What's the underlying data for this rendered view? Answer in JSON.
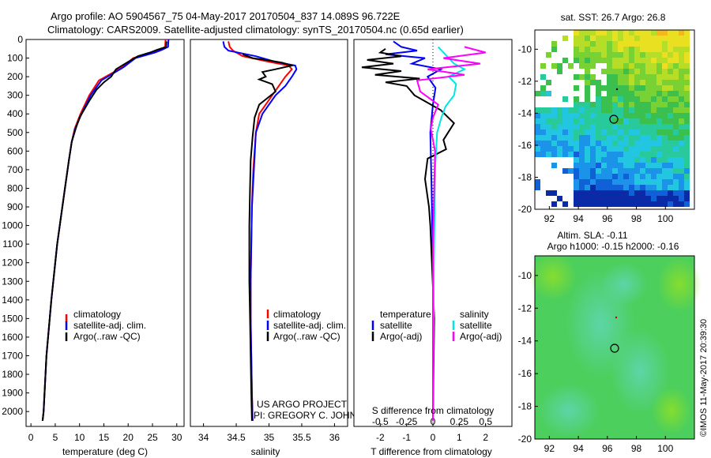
{
  "header": {
    "line1": "Argo profile: AO 5904567_75 04-May-2017 20170504_837 14.089S 96.722E",
    "line2": "Climatology: CARS2009. Satellite-adjusted climatology: synTS_20170504.nc (0.65d earlier)"
  },
  "footer": {
    "project": "US ARGO PROJECT",
    "pi": "PI: GREGORY C. JOHNSON",
    "stamp": "©IMOS 11-May-2017 20:39:30"
  },
  "colors": {
    "climatology": "#ff0000",
    "satellite": "#0000ff",
    "argo": "#000000",
    "sal_satellite": "#00e5e5",
    "sal_argo": "#ff00ff"
  },
  "depth_axis": {
    "ticks": [
      0,
      100,
      200,
      300,
      400,
      500,
      600,
      700,
      800,
      900,
      1000,
      1100,
      1200,
      1300,
      1400,
      1500,
      1600,
      1700,
      1800,
      1900,
      2000
    ],
    "ylim": [
      0,
      2080
    ]
  },
  "chart_data": [
    {
      "id": "temperature",
      "type": "line",
      "xlabel": "temperature (deg C)",
      "xlim": [
        -1,
        31.5
      ],
      "xticks": [
        0,
        5,
        10,
        15,
        20,
        25,
        30
      ],
      "ylabel": "depth",
      "legend": [
        "climatology",
        "satellite-adj. clim.",
        "Argo(..raw -QC)"
      ],
      "series": [
        {
          "name": "climatology",
          "color": "#ff0000",
          "x": [
            27.7,
            27.6,
            26.5,
            25,
            21,
            18.8,
            14,
            12,
            10.2,
            9,
            8.4,
            7.8,
            7,
            6.2,
            5.4,
            4.8,
            4.2,
            3.2,
            2.6,
            2.4
          ],
          "y": [
            0,
            40,
            55,
            70,
            100,
            150,
            220,
            300,
            400,
            480,
            550,
            650,
            800,
            950,
            1100,
            1250,
            1400,
            1700,
            2000,
            2050
          ]
        },
        {
          "name": "satellite-adj. clim.",
          "color": "#0000ff",
          "x": [
            28.3,
            28.2,
            27,
            25.5,
            21.5,
            19,
            14.5,
            12.3,
            10.4,
            9.1,
            8.4,
            7.8,
            7,
            6.2,
            5.4,
            4.8,
            4.2,
            3.2,
            2.6,
            2.4
          ],
          "y": [
            0,
            40,
            55,
            70,
            100,
            150,
            220,
            300,
            400,
            480,
            550,
            650,
            800,
            950,
            1100,
            1250,
            1400,
            1700,
            2000,
            2050
          ]
        },
        {
          "name": "Argo(..raw -QC)",
          "color": "#000000",
          "x": [
            27.9,
            27.8,
            26,
            24.5,
            22,
            20,
            17.5,
            16.5,
            15,
            13.5,
            12,
            10,
            9.2,
            8.4,
            7.8,
            7,
            6.2,
            5.4,
            4.8,
            4.2,
            3.2,
            2.6,
            2.4
          ],
          "y": [
            10,
            40,
            55,
            70,
            90,
            120,
            160,
            200,
            230,
            270,
            330,
            420,
            480,
            550,
            650,
            800,
            950,
            1100,
            1250,
            1400,
            1700,
            2000,
            2050
          ]
        }
      ]
    },
    {
      "id": "salinity",
      "type": "line",
      "xlabel": "salinity",
      "xlim": [
        33.8,
        36.2
      ],
      "xticks": [
        34,
        34.5,
        35,
        35.5,
        36
      ],
      "xtick_labels": [
        "34",
        "34.5",
        "35",
        "35.5",
        "36"
      ],
      "ylabel": "depth",
      "legend": [
        "climatology",
        "satellite-adj. clim.",
        "Argo(..raw -QC)"
      ],
      "series": [
        {
          "name": "climatology",
          "color": "#ff0000",
          "x": [
            34.38,
            34.4,
            34.45,
            34.6,
            35.0,
            35.3,
            35.35,
            35.25,
            35.15,
            35.05,
            34.85,
            34.8,
            34.76,
            34.74,
            34.73,
            34.72,
            34.72,
            34.73,
            34.74,
            34.75
          ],
          "y": [
            10,
            40,
            60,
            90,
            120,
            140,
            160,
            200,
            250,
            300,
            400,
            500,
            700,
            900,
            1100,
            1300,
            1500,
            1700,
            1900,
            2050
          ]
        },
        {
          "name": "satellite-adj. clim.",
          "color": "#0000ff",
          "x": [
            34.3,
            34.32,
            34.38,
            34.8,
            35.1,
            35.4,
            35.42,
            35.35,
            35.25,
            35.1,
            34.9,
            34.8,
            34.77,
            34.74,
            34.73,
            34.72,
            34.72,
            34.73,
            34.74,
            34.75
          ],
          "y": [
            10,
            40,
            60,
            90,
            120,
            140,
            160,
            200,
            250,
            300,
            400,
            500,
            700,
            900,
            1100,
            1300,
            1500,
            1700,
            1900,
            2050
          ]
        },
        {
          "name": "Argo(..raw -QC)",
          "color": "#000000",
          "x": [
            34.6,
            34.75,
            34.95,
            35.2,
            35.35,
            35.1,
            34.9,
            34.95,
            34.85,
            35.05,
            35.1,
            34.85,
            34.78,
            34.75,
            34.72,
            34.71,
            34.7,
            34.7,
            34.71,
            34.72,
            34.73,
            34.74
          ],
          "y": [
            80,
            100,
            110,
            125,
            140,
            160,
            175,
            200,
            215,
            240,
            280,
            350,
            420,
            520,
            650,
            800,
            1000,
            1300,
            1500,
            1700,
            1900,
            2050
          ]
        }
      ]
    },
    {
      "id": "differences",
      "type": "line",
      "xlabel": "T difference from climatology",
      "xlim": [
        -3,
        3
      ],
      "xticks": [
        -2,
        -1,
        0,
        1,
        2
      ],
      "xlabel_top": "S difference from climatology",
      "xlim_top": [
        -0.75,
        0.75
      ],
      "xticks_top": [
        -0.5,
        -0.25,
        0,
        0.25,
        0.5
      ],
      "xtick_labels_top": [
        "-0.5",
        "-0.25",
        "0",
        "0.25",
        "0.5"
      ],
      "legend_temperature_title": "temperature",
      "legend_salinity_title": "salinity",
      "legend_temperature": [
        "satellite",
        "Argo(-adj)"
      ],
      "legend_salinity": [
        "satellite",
        "Argo(-adj)"
      ],
      "series": [
        {
          "name": "T satellite",
          "color": "#0000ff",
          "axis": "T",
          "x": [
            -1.5,
            -1.2,
            -0.6,
            -1.8,
            -0.3,
            -0.8,
            0.3,
            -0.2,
            0.1,
            0.0,
            -0.1,
            -0.05,
            0.0,
            0.0,
            0.0
          ],
          "y": [
            10,
            40,
            60,
            80,
            100,
            130,
            160,
            200,
            260,
            350,
            500,
            800,
            1200,
            1700,
            2050
          ]
        },
        {
          "name": "T Argo(-adj)",
          "color": "#000000",
          "axis": "T",
          "x": [
            -1.8,
            -2.0,
            -1.2,
            -2.5,
            -1.5,
            -2.7,
            -1.2,
            -2.2,
            -0.5,
            -1.8,
            -1.0,
            -0.7,
            0.3,
            0.8,
            0.4,
            0.5,
            -0.2,
            -0.3,
            -0.15,
            -0.1,
            0.05,
            0.0
          ],
          "y": [
            50,
            70,
            90,
            110,
            130,
            150,
            170,
            190,
            210,
            230,
            250,
            300,
            380,
            450,
            540,
            590,
            640,
            750,
            900,
            1000,
            1500,
            2050
          ]
        },
        {
          "name": "S satellite",
          "color": "#00e5e5",
          "axis": "S",
          "x": [
            0.05,
            0.1,
            0.15,
            0.2,
            0.3,
            0.15,
            0.22,
            0.2,
            0.12,
            0.08,
            0.04,
            0.02,
            0.01,
            0.0
          ],
          "y": [
            40,
            70,
            100,
            130,
            160,
            200,
            240,
            300,
            360,
            420,
            500,
            700,
            1200,
            2050
          ]
        },
        {
          "name": "S Argo(-adj)",
          "color": "#ff00ff",
          "axis": "S",
          "x": [
            0.3,
            0.5,
            0.1,
            0.45,
            -0.05,
            0.3,
            -0.15,
            -0.12,
            0.05,
            0.0,
            -0.02,
            0.02,
            0.0,
            0.0
          ],
          "y": [
            40,
            70,
            100,
            130,
            160,
            190,
            220,
            280,
            350,
            420,
            480,
            600,
            1100,
            2050
          ]
        }
      ]
    }
  ],
  "maps": {
    "sst": {
      "title": "sat. SST: 26.7  Argo: 26.8",
      "xticks": [
        92,
        94,
        96,
        98,
        100
      ],
      "yticks": [
        -10,
        -12,
        -14,
        -16,
        -18,
        -20
      ],
      "xlim": [
        91,
        102
      ],
      "ylim": [
        -20,
        -8.8
      ],
      "float_lon": 96.722,
      "float_lat": -14.089
    },
    "sla": {
      "title1": "Altim. SLA: -0.11",
      "title2": "Argo h1000: -0.15 h2000: -0.16",
      "xticks": [
        92,
        94,
        96,
        98,
        100
      ],
      "yticks": [
        -10,
        -12,
        -14,
        -16,
        -18,
        -20
      ],
      "xlim": [
        91,
        102
      ],
      "ylim": [
        -20,
        -8.8
      ],
      "float_lon": 96.722,
      "float_lat": -14.089
    }
  }
}
